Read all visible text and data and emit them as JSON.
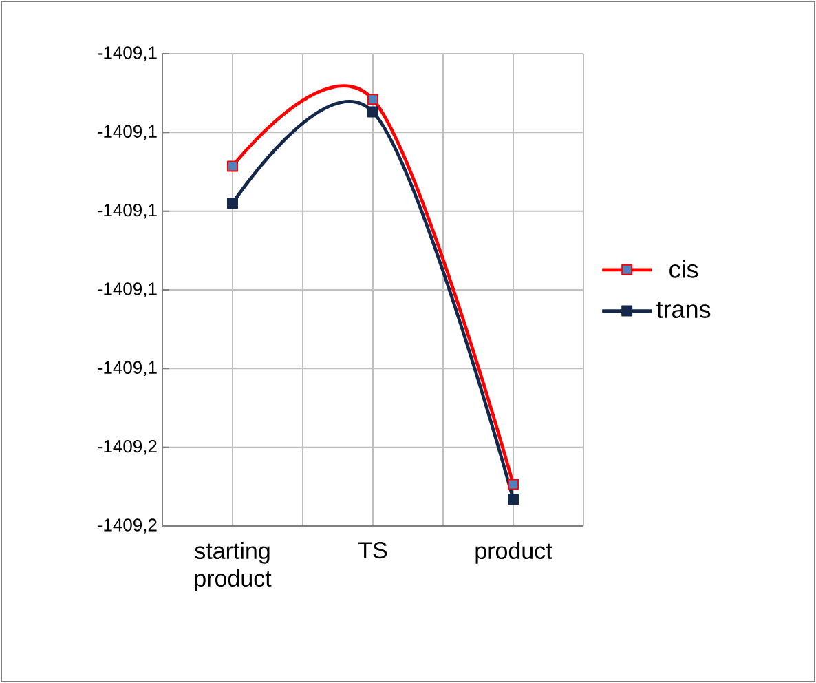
{
  "chart_data": {
    "type": "line",
    "categories": [
      "starting product",
      "TS",
      "product"
    ],
    "series": [
      {
        "name": "cis",
        "color": "#ff0000",
        "values": [
          -1409.1143,
          -1409.1058,
          -1409.1547
        ]
      },
      {
        "name": "trans",
        "color": "#14284b",
        "values": [
          -1409.119,
          -1409.1074,
          -1409.1566
        ]
      }
    ],
    "ylim": [
      -1409.16,
      -1409.1
    ],
    "yticks": [
      {
        "value": -1409.16,
        "label": "-1409,2"
      },
      {
        "value": -1409.15,
        "label": "-1409,2"
      },
      {
        "value": -1409.14,
        "label": "-1409,1"
      },
      {
        "value": -1409.13,
        "label": "-1409,1"
      },
      {
        "value": -1409.12,
        "label": "-1409,1"
      },
      {
        "value": -1409.11,
        "label": "-1409,1"
      },
      {
        "value": -1409.1,
        "label": "-1409,1"
      }
    ],
    "grid": true,
    "legend": "right",
    "marker": "square",
    "line_style": "solid"
  }
}
